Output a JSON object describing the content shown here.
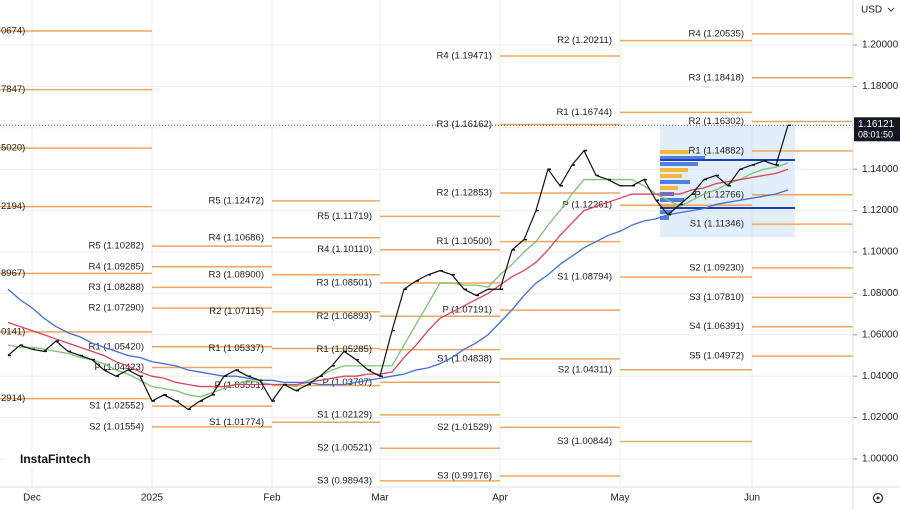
{
  "chart_data": {
    "type": "line",
    "currency": "USD",
    "watermark": "InstaFintech",
    "last_price": 1.16121,
    "countdown": "08:01:50",
    "categories": [
      null,
      null,
      "Dec",
      null,
      null,
      null,
      null,
      null,
      null,
      null,
      null,
      null,
      "2025",
      null,
      null,
      null,
      null,
      null,
      null,
      null,
      null,
      null,
      "Feb",
      null,
      null,
      null,
      null,
      null,
      null,
      null,
      null,
      "Mar",
      null,
      null,
      null,
      null,
      null,
      null,
      null,
      null,
      null,
      "Apr",
      null,
      null,
      null,
      null,
      null,
      null,
      null,
      null,
      null,
      "May",
      null,
      null,
      null,
      null,
      null,
      null,
      null,
      null,
      null,
      null,
      "Jun",
      null,
      null,
      null
    ],
    "series": [
      {
        "color": "#111111",
        "values": [
          1.05,
          1.055,
          1.053,
          1.052,
          1.057,
          1.052,
          1.05,
          1.048,
          1.043,
          1.04,
          1.043,
          1.04,
          1.028,
          1.031,
          1.028,
          1.024,
          1.028,
          1.031,
          1.04,
          1.043,
          1.04,
          1.038,
          1.028,
          1.036,
          1.033,
          1.036,
          1.04,
          1.045,
          1.052,
          1.048,
          1.043,
          1.04,
          1.062,
          1.082,
          1.086,
          1.089,
          1.091,
          1.089,
          1.082,
          1.079,
          1.082,
          1.082,
          1.101,
          1.106,
          1.12,
          1.14,
          1.132,
          1.142,
          1.149,
          1.137,
          1.135,
          1.132,
          1.132,
          1.135,
          1.125,
          1.118,
          1.123,
          1.128,
          1.135,
          1.137,
          1.132,
          1.14,
          1.142,
          1.144,
          1.142,
          1.16121
        ]
      },
      {
        "color": "#7cc36e",
        "values": [
          1.055,
          1.054,
          1.054,
          1.053,
          1.052,
          1.051,
          1.049,
          1.048,
          1.046,
          1.043,
          1.041,
          1.038,
          1.035,
          1.034,
          1.033,
          1.031,
          1.03,
          1.032,
          1.034,
          1.036,
          1.038,
          1.037,
          1.036,
          1.036,
          1.035,
          1.038,
          1.04,
          1.043,
          1.045,
          1.045,
          1.045,
          1.045,
          1.045,
          1.055,
          1.065,
          1.075,
          1.085,
          1.085,
          1.084,
          1.084,
          1.083,
          1.089,
          1.094,
          1.1,
          1.105,
          1.113,
          1.12,
          1.128,
          1.135,
          1.135,
          1.135,
          1.135,
          1.135,
          1.132,
          1.128,
          1.125,
          1.122,
          1.125,
          1.128,
          1.13,
          1.133,
          1.135,
          1.138,
          1.14,
          1.141,
          1.143
        ]
      },
      {
        "color": "#d9455f",
        "values": [
          1.066,
          1.064,
          1.062,
          1.06,
          1.058,
          1.056,
          1.054,
          1.052,
          1.05,
          1.047,
          1.045,
          1.042,
          1.04,
          1.039,
          1.037,
          1.036,
          1.035,
          1.035,
          1.035,
          1.036,
          1.036,
          1.036,
          1.036,
          1.036,
          1.036,
          1.037,
          1.038,
          1.039,
          1.04,
          1.04,
          1.041,
          1.041,
          1.042,
          1.049,
          1.055,
          1.062,
          1.068,
          1.071,
          1.074,
          1.077,
          1.08,
          1.084,
          1.088,
          1.091,
          1.095,
          1.101,
          1.108,
          1.114,
          1.12,
          1.122,
          1.124,
          1.126,
          1.128,
          1.128,
          1.128,
          1.128,
          1.128,
          1.13,
          1.131,
          1.133,
          1.134,
          1.135,
          1.136,
          1.137,
          1.138,
          1.14
        ]
      },
      {
        "color": "#3f6fd8",
        "values": [
          1.082,
          1.077,
          1.073,
          1.068,
          1.064,
          1.061,
          1.059,
          1.056,
          1.054,
          1.052,
          1.05,
          1.049,
          1.047,
          1.046,
          1.045,
          1.043,
          1.042,
          1.041,
          1.04,
          1.04,
          1.039,
          1.038,
          1.038,
          1.037,
          1.037,
          1.037,
          1.036,
          1.036,
          1.036,
          1.037,
          1.038,
          1.039,
          1.04,
          1.041,
          1.043,
          1.044,
          1.046,
          1.049,
          1.053,
          1.056,
          1.06,
          1.066,
          1.072,
          1.079,
          1.085,
          1.089,
          1.094,
          1.098,
          1.102,
          1.105,
          1.108,
          1.11,
          1.113,
          1.115,
          1.116,
          1.118,
          1.119,
          1.12,
          1.121,
          1.123,
          1.124,
          1.125,
          1.126,
          1.127,
          1.128,
          1.13
        ]
      }
    ],
    "pivot_color": "#f2a55f",
    "pivots": [
      [
        {
          "label": "0674)",
          "value": 1.20674
        },
        {
          "label": "7847)",
          "value": 1.17847
        },
        {
          "label": "5020)",
          "value": 1.1502
        },
        {
          "label": "2194)",
          "value": 1.12194
        },
        {
          "label": "8967)",
          "value": 1.08967
        },
        {
          "label": "0141)",
          "value": 1.06141
        },
        {
          "label": "2914)",
          "value": 1.02914
        }
      ],
      [
        {
          "label": "R5 (1.10282)",
          "value": 1.10282
        },
        {
          "label": "R4 (1.09285)",
          "value": 1.09285
        },
        {
          "label": "R3 (1.08288)",
          "value": 1.08288
        },
        {
          "label": "R2 (1.07290)",
          "value": 1.0729
        },
        {
          "label": "R1 (1.05420)",
          "value": 1.0542
        },
        {
          "label": "P (1.04423)",
          "value": 1.04423
        },
        {
          "label": "S1 (1.02552)",
          "value": 1.02552
        },
        {
          "label": "S2 (1.01554)",
          "value": 1.01554
        }
      ],
      [
        {
          "label": "R5 (1.12472)",
          "value": 1.12472
        },
        {
          "label": "R4 (1.10686)",
          "value": 1.10686
        },
        {
          "label": "R3 (1.08900)",
          "value": 1.089
        },
        {
          "label": "R2 (1.07115)",
          "value": 1.07115
        },
        {
          "label": "R1 (1.05337)",
          "value": 1.05337
        },
        {
          "label": "P (1.03551)",
          "value": 1.03551
        },
        {
          "label": "S1 (1.01774)",
          "value": 1.01774
        }
      ],
      [
        {
          "label": "R5 (1.11719)",
          "value": 1.11719
        },
        {
          "label": "R4 (1.10110)",
          "value": 1.1011
        },
        {
          "label": "R3 (1.08501)",
          "value": 1.08501
        },
        {
          "label": "R2 (1.06893)",
          "value": 1.06893
        },
        {
          "label": "R1 (1.05285)",
          "value": 1.05285
        },
        {
          "label": "P (1.03707)",
          "value": 1.03707
        },
        {
          "label": "S1 (1.02129)",
          "value": 1.02129
        },
        {
          "label": "S2 (1.00521)",
          "value": 1.00521
        },
        {
          "label": "S3 (0.98943)",
          "value": 0.98943
        }
      ],
      [
        {
          "label": "R4 (1.19471)",
          "value": 1.19471
        },
        {
          "label": "R3 (1.16162)",
          "value": 1.16162
        },
        {
          "label": "R2 (1.12853)",
          "value": 1.12853
        },
        {
          "label": "R1 (1.10500)",
          "value": 1.105
        },
        {
          "label": "P (1.07191)",
          "value": 1.07191
        },
        {
          "label": "S1 (1.04838)",
          "value": 1.04838
        },
        {
          "label": "S2 (1.01529)",
          "value": 1.01529
        },
        {
          "label": "S3 (0.99176)",
          "value": 0.99176
        }
      ],
      [
        {
          "label": "R2 (1.20211)",
          "value": 1.20211
        },
        {
          "label": "R1 (1.16744)",
          "value": 1.16744
        },
        {
          "label": "P (1.12261)",
          "value": 1.12261
        },
        {
          "label": "S1 (1.08794)",
          "value": 1.08794
        },
        {
          "label": "S2 (1.04311)",
          "value": 1.04311
        },
        {
          "label": "S3 (1.00844)",
          "value": 1.00844
        }
      ],
      [
        {
          "label": "R4 (1.20535)",
          "value": 1.20535
        },
        {
          "label": "R3 (1.18418)",
          "value": 1.18418
        },
        {
          "label": "R2 (1.16302)",
          "value": 1.16302
        },
        {
          "label": "R1 (1.14882)",
          "value": 1.14882
        },
        {
          "label": "P (1.12766)",
          "value": 1.12766
        },
        {
          "label": "S1 (1.11346)",
          "value": 1.11346
        },
        {
          "label": "S2 (1.09230)",
          "value": 1.0923
        },
        {
          "label": "S3 (1.07810)",
          "value": 1.0781
        },
        {
          "label": "S4 (1.06391)",
          "value": 1.06391
        },
        {
          "label": "S5 (1.04972)",
          "value": 1.04972
        }
      ]
    ],
    "ylim": [
      0.98647,
      1.22174
    ],
    "yticks": [
      {
        "value": 1.0,
        "label": "1.00000"
      },
      {
        "value": 1.02,
        "label": "1.02000"
      },
      {
        "value": 1.04,
        "label": "1.04000"
      },
      {
        "value": 1.06,
        "label": "1.06000"
      },
      {
        "value": 1.08,
        "label": "1.08000"
      },
      {
        "value": 1.1,
        "label": "1.10000"
      },
      {
        "value": 1.12,
        "label": "1.12000"
      },
      {
        "value": 1.14,
        "label": "1.14000"
      },
      {
        "value": 1.16,
        "label": "1.16000"
      },
      {
        "value": 1.18,
        "label": "1.18000"
      },
      {
        "value": 1.2,
        "label": "1.20000"
      }
    ],
    "grid": true
  }
}
